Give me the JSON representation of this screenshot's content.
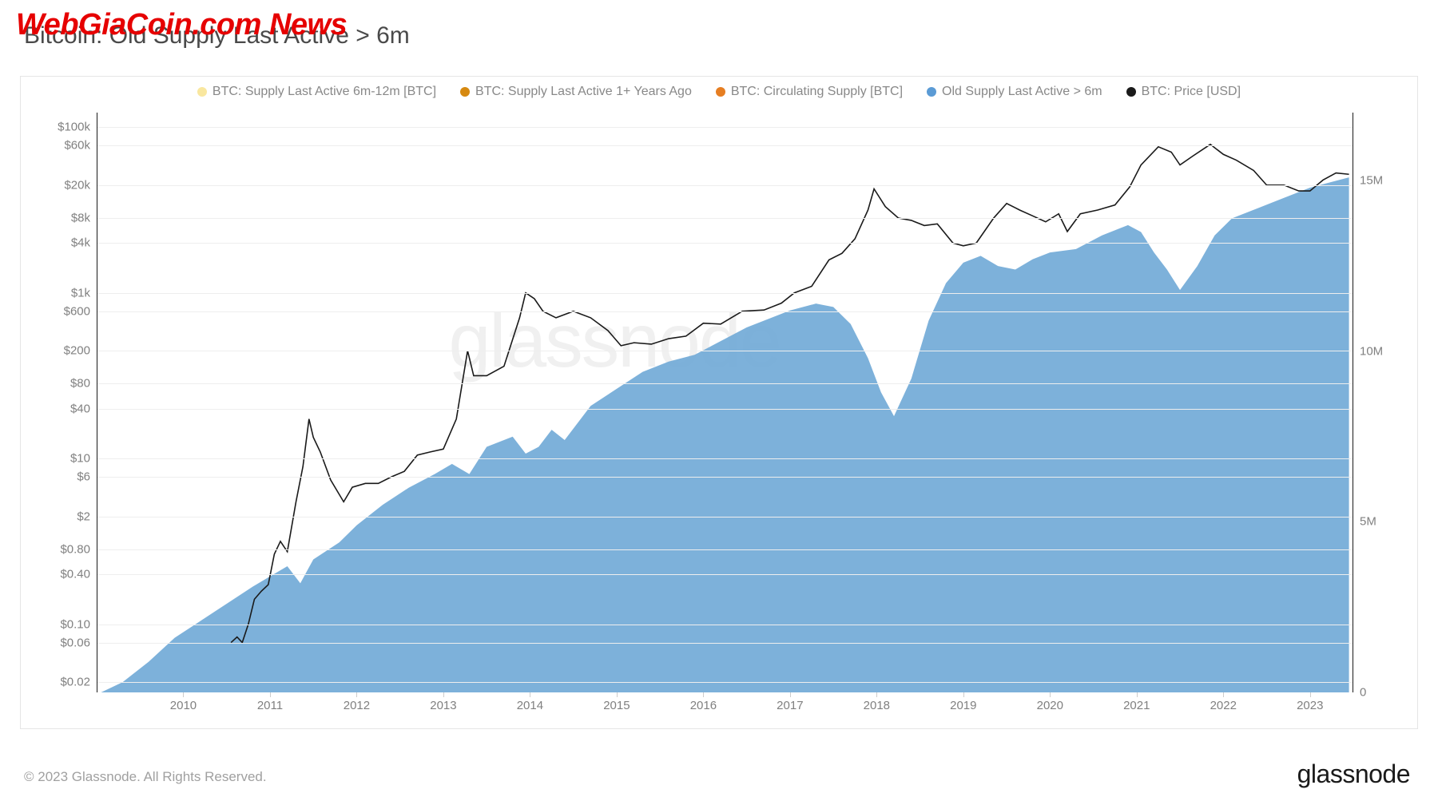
{
  "overlay_watermark": "WebGiaCoin.com News",
  "title": "Bitcoin: Old Supply Last Active > 6m",
  "legend": [
    {
      "label": "BTC: Supply Last Active 6m-12m [BTC]",
      "color": "#f9e79f"
    },
    {
      "label": "BTC: Supply Last Active 1+ Years Ago",
      "color": "#d68910"
    },
    {
      "label": "BTC: Circulating Supply [BTC]",
      "color": "#e67e22"
    },
    {
      "label": "Old Supply Last Active > 6m",
      "color": "#5b9bd5"
    },
    {
      "label": "BTC: Price [USD]",
      "color": "#1a1a1a"
    }
  ],
  "chart": {
    "type": "area+line",
    "background_color": "#ffffff",
    "grid_color": "#eeeeee",
    "area_fill": "#6fa8d6",
    "area_opacity": 0.9,
    "line_color": "#1a1a1a",
    "line_width": 1.6,
    "x_axis": {
      "years": [
        "2010",
        "2011",
        "2012",
        "2013",
        "2014",
        "2015",
        "2016",
        "2017",
        "2018",
        "2019",
        "2020",
        "2021",
        "2022",
        "2023"
      ],
      "range": [
        2009.0,
        2023.5
      ]
    },
    "y_left": {
      "scale": "log",
      "ticks": [
        {
          "v": 0.02,
          "label": "$0.02"
        },
        {
          "v": 0.06,
          "label": "$0.06"
        },
        {
          "v": 0.1,
          "label": "$0.10"
        },
        {
          "v": 0.4,
          "label": "$0.40"
        },
        {
          "v": 0.8,
          "label": "$0.80"
        },
        {
          "v": 2,
          "label": "$2"
        },
        {
          "v": 6,
          "label": "$6"
        },
        {
          "v": 10,
          "label": "$10"
        },
        {
          "v": 40,
          "label": "$40"
        },
        {
          "v": 80,
          "label": "$80"
        },
        {
          "v": 200,
          "label": "$200"
        },
        {
          "v": 600,
          "label": "$600"
        },
        {
          "v": 1000,
          "label": "$1k"
        },
        {
          "v": 4000,
          "label": "$4k"
        },
        {
          "v": 8000,
          "label": "$8k"
        },
        {
          "v": 20000,
          "label": "$20k"
        },
        {
          "v": 60000,
          "label": "$60k"
        },
        {
          "v": 100000,
          "label": "$100k"
        }
      ],
      "range": [
        0.015,
        150000
      ]
    },
    "y_right": {
      "scale": "linear",
      "ticks": [
        {
          "v": 0,
          "label": "0"
        },
        {
          "v": 5000000,
          "label": "5M"
        },
        {
          "v": 10000000,
          "label": "10M"
        },
        {
          "v": 15000000,
          "label": "15M"
        }
      ],
      "range": [
        0,
        17000000
      ]
    },
    "supply_series": [
      {
        "t": 2009.05,
        "v": 0
      },
      {
        "t": 2009.3,
        "v": 300000
      },
      {
        "t": 2009.6,
        "v": 900000
      },
      {
        "t": 2009.9,
        "v": 1600000
      },
      {
        "t": 2010.2,
        "v": 2100000
      },
      {
        "t": 2010.5,
        "v": 2600000
      },
      {
        "t": 2010.8,
        "v": 3100000
      },
      {
        "t": 2011.0,
        "v": 3400000
      },
      {
        "t": 2011.2,
        "v": 3700000
      },
      {
        "t": 2011.35,
        "v": 3200000
      },
      {
        "t": 2011.5,
        "v": 3900000
      },
      {
        "t": 2011.8,
        "v": 4400000
      },
      {
        "t": 2012.0,
        "v": 4900000
      },
      {
        "t": 2012.3,
        "v": 5500000
      },
      {
        "t": 2012.6,
        "v": 6000000
      },
      {
        "t": 2012.9,
        "v": 6400000
      },
      {
        "t": 2013.1,
        "v": 6700000
      },
      {
        "t": 2013.3,
        "v": 6400000
      },
      {
        "t": 2013.5,
        "v": 7200000
      },
      {
        "t": 2013.8,
        "v": 7500000
      },
      {
        "t": 2013.95,
        "v": 7000000
      },
      {
        "t": 2014.1,
        "v": 7200000
      },
      {
        "t": 2014.25,
        "v": 7700000
      },
      {
        "t": 2014.4,
        "v": 7400000
      },
      {
        "t": 2014.7,
        "v": 8400000
      },
      {
        "t": 2015.0,
        "v": 8900000
      },
      {
        "t": 2015.3,
        "v": 9400000
      },
      {
        "t": 2015.6,
        "v": 9700000
      },
      {
        "t": 2015.9,
        "v": 9900000
      },
      {
        "t": 2016.2,
        "v": 10300000
      },
      {
        "t": 2016.5,
        "v": 10700000
      },
      {
        "t": 2016.8,
        "v": 11000000
      },
      {
        "t": 2017.0,
        "v": 11200000
      },
      {
        "t": 2017.3,
        "v": 11400000
      },
      {
        "t": 2017.5,
        "v": 11300000
      },
      {
        "t": 2017.7,
        "v": 10800000
      },
      {
        "t": 2017.9,
        "v": 9800000
      },
      {
        "t": 2018.05,
        "v": 8800000
      },
      {
        "t": 2018.2,
        "v": 8100000
      },
      {
        "t": 2018.4,
        "v": 9200000
      },
      {
        "t": 2018.6,
        "v": 10900000
      },
      {
        "t": 2018.8,
        "v": 12000000
      },
      {
        "t": 2019.0,
        "v": 12600000
      },
      {
        "t": 2019.2,
        "v": 12800000
      },
      {
        "t": 2019.4,
        "v": 12500000
      },
      {
        "t": 2019.6,
        "v": 12400000
      },
      {
        "t": 2019.8,
        "v": 12700000
      },
      {
        "t": 2020.0,
        "v": 12900000
      },
      {
        "t": 2020.3,
        "v": 13000000
      },
      {
        "t": 2020.6,
        "v": 13400000
      },
      {
        "t": 2020.9,
        "v": 13700000
      },
      {
        "t": 2021.05,
        "v": 13500000
      },
      {
        "t": 2021.2,
        "v": 12900000
      },
      {
        "t": 2021.35,
        "v": 12400000
      },
      {
        "t": 2021.5,
        "v": 11800000
      },
      {
        "t": 2021.7,
        "v": 12500000
      },
      {
        "t": 2021.9,
        "v": 13400000
      },
      {
        "t": 2022.1,
        "v": 13900000
      },
      {
        "t": 2022.4,
        "v": 14200000
      },
      {
        "t": 2022.7,
        "v": 14500000
      },
      {
        "t": 2023.0,
        "v": 14800000
      },
      {
        "t": 2023.3,
        "v": 15000000
      },
      {
        "t": 2023.45,
        "v": 15100000
      }
    ],
    "price_series": [
      {
        "t": 2010.55,
        "v": 0.06
      },
      {
        "t": 2010.62,
        "v": 0.07
      },
      {
        "t": 2010.68,
        "v": 0.06
      },
      {
        "t": 2010.75,
        "v": 0.1
      },
      {
        "t": 2010.82,
        "v": 0.2
      },
      {
        "t": 2010.9,
        "v": 0.25
      },
      {
        "t": 2010.98,
        "v": 0.3
      },
      {
        "t": 2011.05,
        "v": 0.7
      },
      {
        "t": 2011.12,
        "v": 1.0
      },
      {
        "t": 2011.2,
        "v": 0.75
      },
      {
        "t": 2011.3,
        "v": 3.0
      },
      {
        "t": 2011.38,
        "v": 8.0
      },
      {
        "t": 2011.45,
        "v": 30
      },
      {
        "t": 2011.5,
        "v": 18
      },
      {
        "t": 2011.58,
        "v": 12
      },
      {
        "t": 2011.7,
        "v": 5.5
      },
      {
        "t": 2011.85,
        "v": 3.0
      },
      {
        "t": 2011.95,
        "v": 4.5
      },
      {
        "t": 2012.1,
        "v": 5.0
      },
      {
        "t": 2012.25,
        "v": 5.0
      },
      {
        "t": 2012.4,
        "v": 6.0
      },
      {
        "t": 2012.55,
        "v": 7.0
      },
      {
        "t": 2012.7,
        "v": 11
      },
      {
        "t": 2012.85,
        "v": 12
      },
      {
        "t": 2013.0,
        "v": 13
      },
      {
        "t": 2013.15,
        "v": 30
      },
      {
        "t": 2013.28,
        "v": 200
      },
      {
        "t": 2013.35,
        "v": 100
      },
      {
        "t": 2013.5,
        "v": 100
      },
      {
        "t": 2013.7,
        "v": 130
      },
      {
        "t": 2013.88,
        "v": 500
      },
      {
        "t": 2013.95,
        "v": 1000
      },
      {
        "t": 2014.05,
        "v": 850
      },
      {
        "t": 2014.15,
        "v": 600
      },
      {
        "t": 2014.3,
        "v": 500
      },
      {
        "t": 2014.5,
        "v": 600
      },
      {
        "t": 2014.7,
        "v": 500
      },
      {
        "t": 2014.9,
        "v": 350
      },
      {
        "t": 2015.05,
        "v": 230
      },
      {
        "t": 2015.2,
        "v": 250
      },
      {
        "t": 2015.4,
        "v": 240
      },
      {
        "t": 2015.6,
        "v": 280
      },
      {
        "t": 2015.8,
        "v": 300
      },
      {
        "t": 2016.0,
        "v": 430
      },
      {
        "t": 2016.2,
        "v": 420
      },
      {
        "t": 2016.45,
        "v": 600
      },
      {
        "t": 2016.7,
        "v": 620
      },
      {
        "t": 2016.9,
        "v": 750
      },
      {
        "t": 2017.05,
        "v": 1000
      },
      {
        "t": 2017.25,
        "v": 1200
      },
      {
        "t": 2017.45,
        "v": 2500
      },
      {
        "t": 2017.6,
        "v": 3000
      },
      {
        "t": 2017.75,
        "v": 4500
      },
      {
        "t": 2017.9,
        "v": 10000
      },
      {
        "t": 2017.97,
        "v": 18000
      },
      {
        "t": 2018.1,
        "v": 11000
      },
      {
        "t": 2018.25,
        "v": 8000
      },
      {
        "t": 2018.4,
        "v": 7500
      },
      {
        "t": 2018.55,
        "v": 6500
      },
      {
        "t": 2018.7,
        "v": 6800
      },
      {
        "t": 2018.88,
        "v": 4000
      },
      {
        "t": 2019.0,
        "v": 3700
      },
      {
        "t": 2019.15,
        "v": 4000
      },
      {
        "t": 2019.35,
        "v": 8000
      },
      {
        "t": 2019.5,
        "v": 12000
      },
      {
        "t": 2019.65,
        "v": 10000
      },
      {
        "t": 2019.8,
        "v": 8500
      },
      {
        "t": 2019.95,
        "v": 7200
      },
      {
        "t": 2020.1,
        "v": 9000
      },
      {
        "t": 2020.2,
        "v": 5500
      },
      {
        "t": 2020.35,
        "v": 9000
      },
      {
        "t": 2020.55,
        "v": 10000
      },
      {
        "t": 2020.75,
        "v": 11500
      },
      {
        "t": 2020.92,
        "v": 19000
      },
      {
        "t": 2021.05,
        "v": 35000
      },
      {
        "t": 2021.25,
        "v": 58000
      },
      {
        "t": 2021.4,
        "v": 50000
      },
      {
        "t": 2021.5,
        "v": 35000
      },
      {
        "t": 2021.65,
        "v": 45000
      },
      {
        "t": 2021.85,
        "v": 62000
      },
      {
        "t": 2022.0,
        "v": 47000
      },
      {
        "t": 2022.15,
        "v": 40000
      },
      {
        "t": 2022.35,
        "v": 30000
      },
      {
        "t": 2022.5,
        "v": 20000
      },
      {
        "t": 2022.7,
        "v": 20000
      },
      {
        "t": 2022.87,
        "v": 17000
      },
      {
        "t": 2023.0,
        "v": 17000
      },
      {
        "t": 2023.15,
        "v": 23000
      },
      {
        "t": 2023.3,
        "v": 28000
      },
      {
        "t": 2023.45,
        "v": 27000
      }
    ]
  },
  "footer_left": "© 2023 Glassnode. All Rights Reserved.",
  "footer_right": "glassnode",
  "gn_watermark": "glassnode"
}
